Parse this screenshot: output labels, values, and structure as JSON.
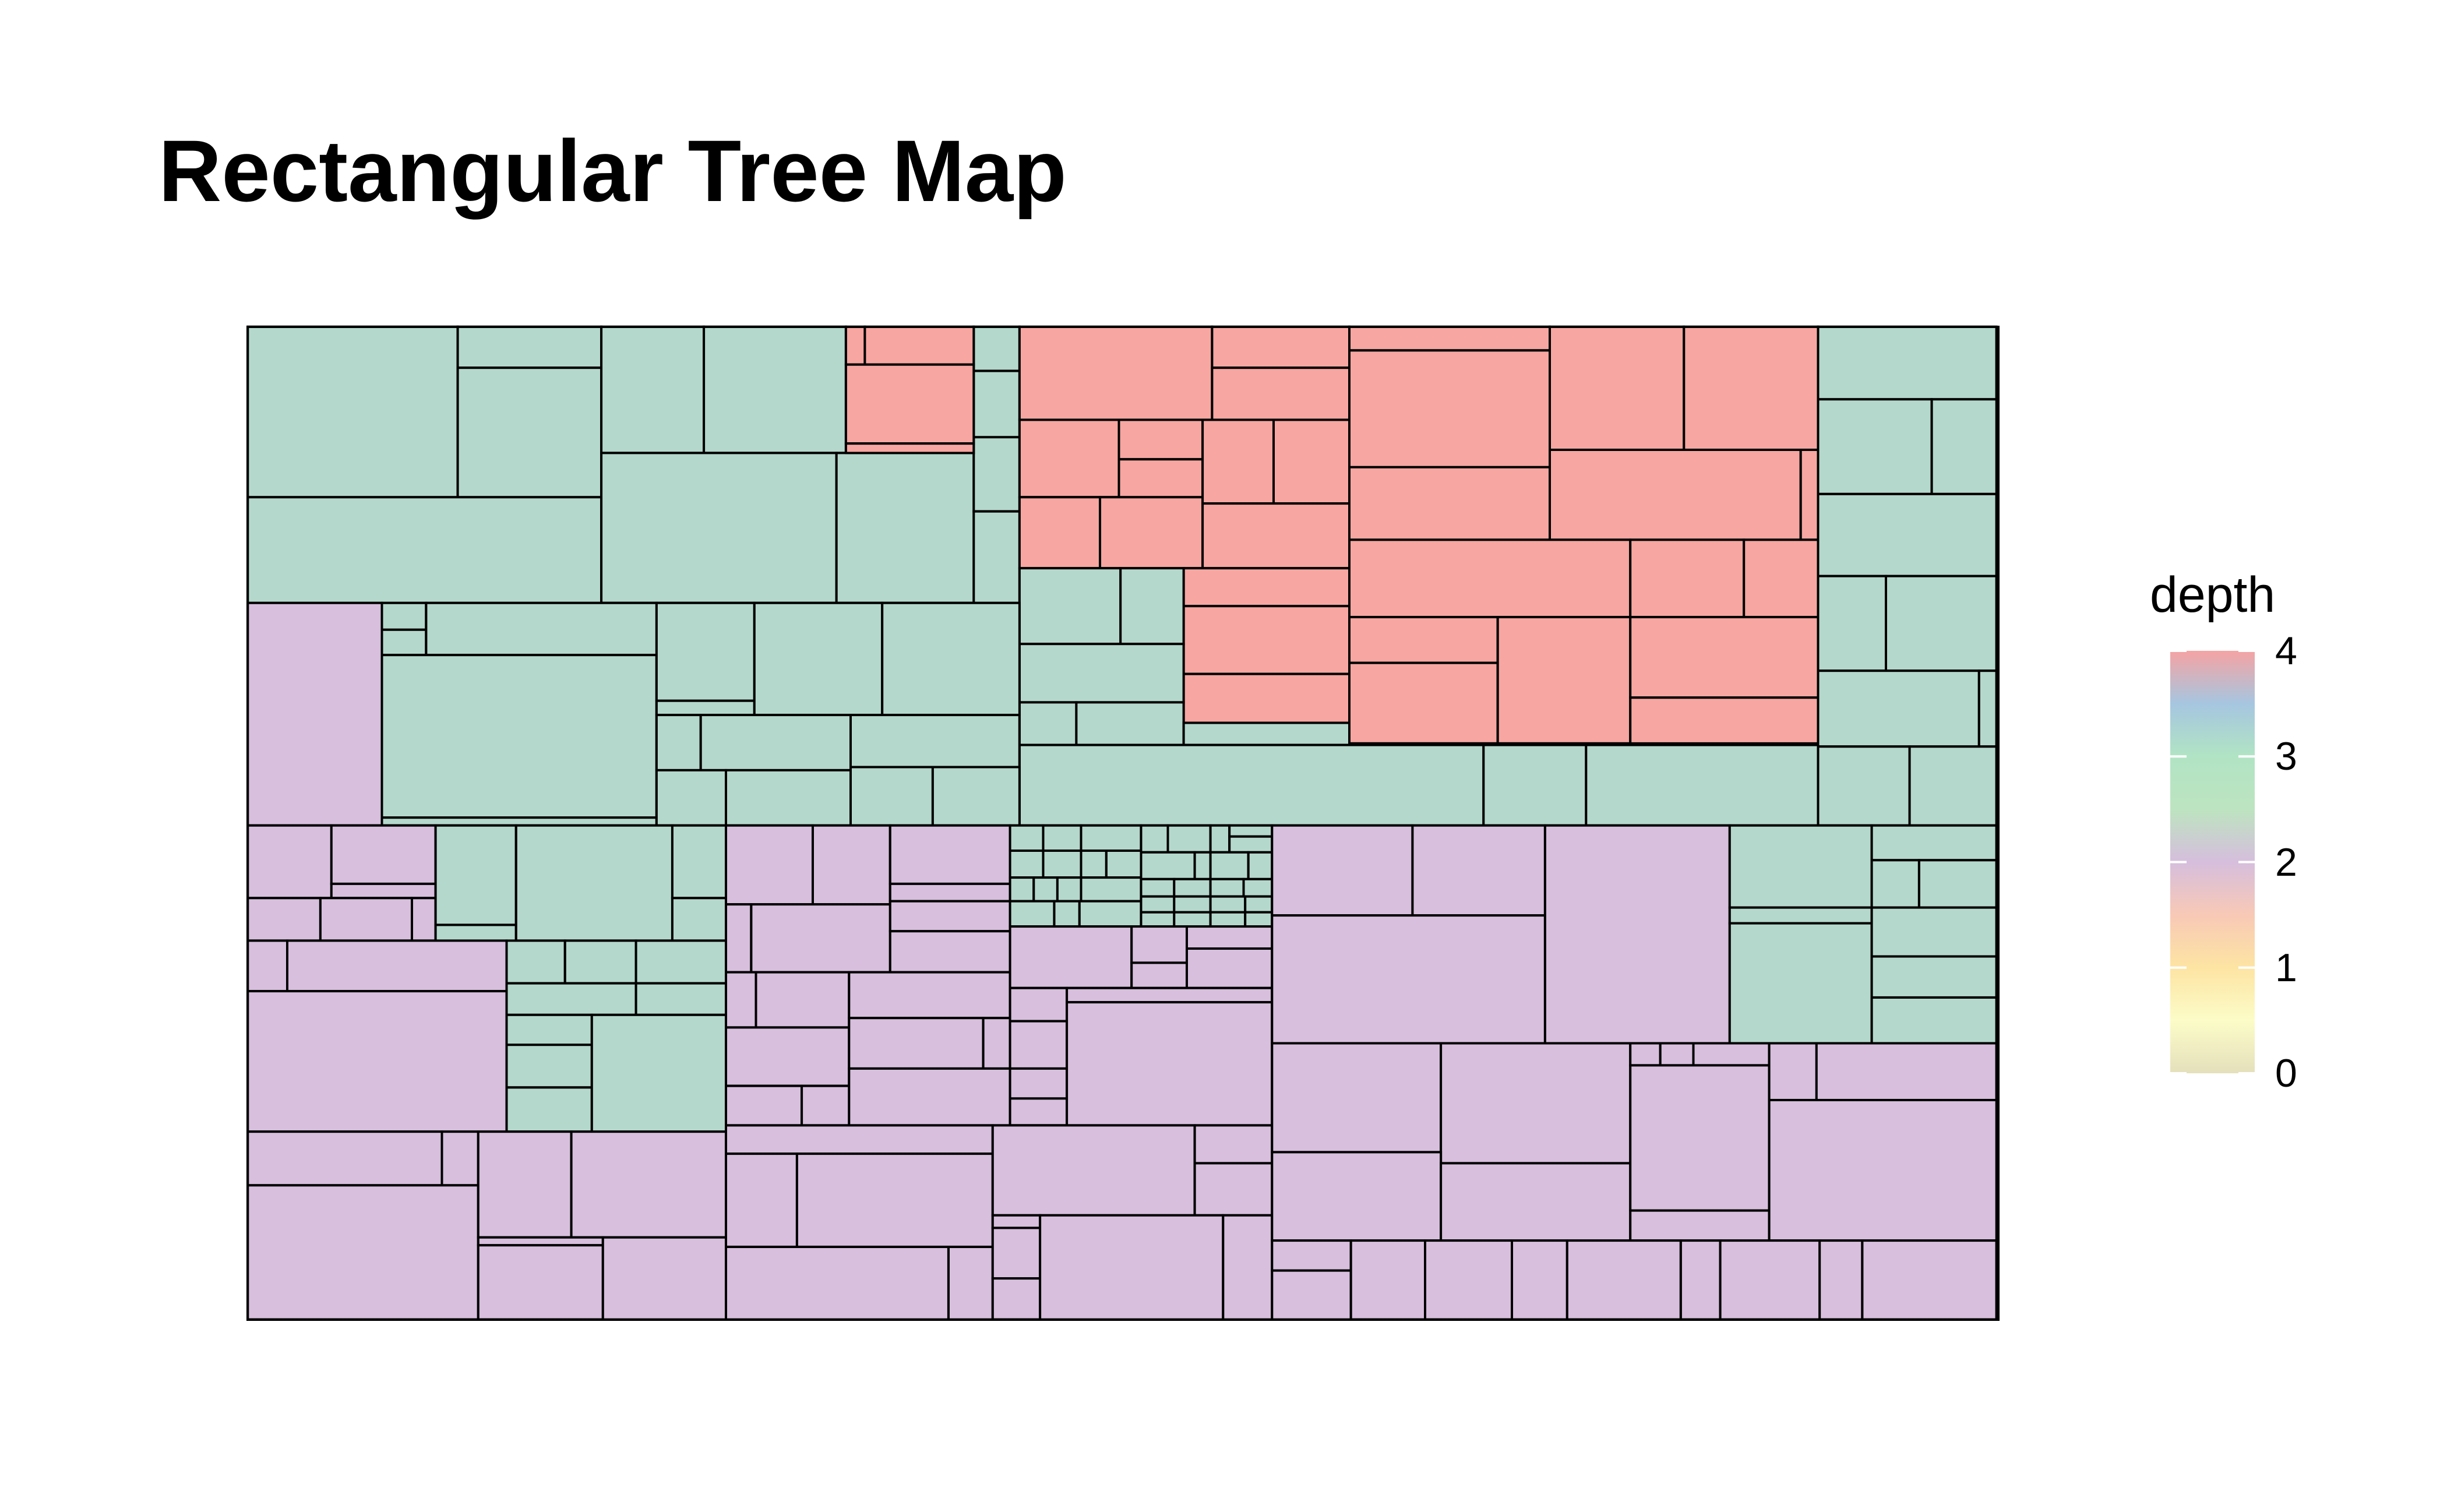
{
  "title": "Rectangular Tree Map",
  "chart_data": {
    "type": "treemap",
    "title": "Rectangular Tree Map",
    "color_variable": "depth",
    "legend": {
      "title": "depth",
      "position": "right",
      "ticks": [
        0,
        1,
        2,
        3,
        4
      ],
      "tick_labels": [
        "0",
        "1",
        "2",
        "3",
        "4"
      ],
      "range": [
        0,
        4
      ],
      "colormap": [
        {
          "value": 0.0,
          "color": "#e4e0bb"
        },
        {
          "value": 0.5,
          "color": "#fcfcc8"
        },
        {
          "value": 1.0,
          "color": "#fde4a3"
        },
        {
          "value": 1.5,
          "color": "#f8c9b6"
        },
        {
          "value": 2.0,
          "color": "#d6bedd"
        },
        {
          "value": 2.5,
          "color": "#bde4c0"
        },
        {
          "value": 3.0,
          "color": "#b1e4c4"
        },
        {
          "value": 3.5,
          "color": "#a6c6e0"
        },
        {
          "value": 4.0,
          "color": "#f5a3a3"
        }
      ]
    },
    "depth_colors": {
      "2": "#d7bfdd",
      "3": "#b4d8cc",
      "4": "#f7a6a1"
    },
    "border_color": "#000000",
    "leaf_count_by_depth": {
      "2": 64,
      "3": 73,
      "4": 43
    }
  }
}
